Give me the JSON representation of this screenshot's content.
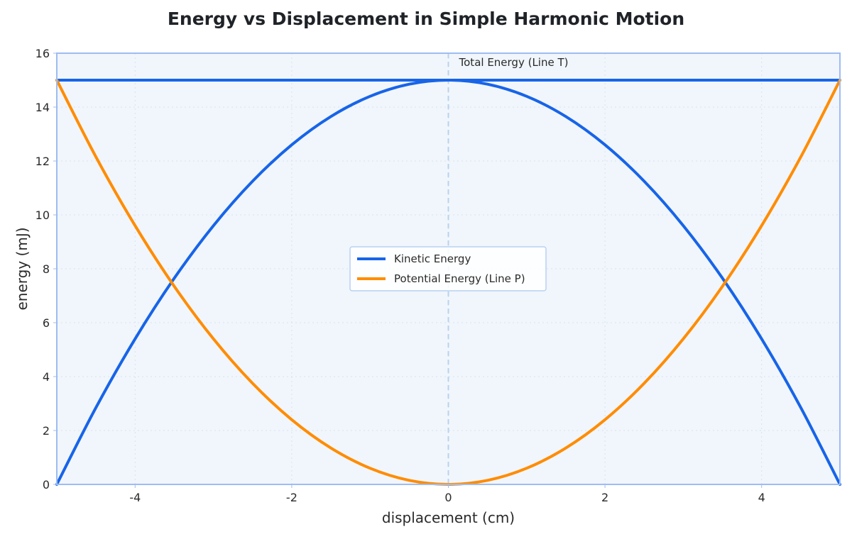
{
  "chart_data": {
    "type": "line",
    "title": "Energy vs Displacement in Simple Harmonic Motion",
    "xlabel": "displacement (cm)",
    "ylabel": "energy (mJ)",
    "xlim": [
      -5,
      5
    ],
    "ylim": [
      0,
      16
    ],
    "x_ticks": [
      -4,
      -2,
      0,
      2,
      4
    ],
    "y_ticks": [
      0,
      2,
      4,
      6,
      8,
      10,
      12,
      14,
      16
    ],
    "grid": true,
    "legend_position": "center",
    "x": [
      -5,
      -4.5,
      -4,
      -3.5,
      -3,
      -2.5,
      -2,
      -1.5,
      -1,
      -0.5,
      0,
      0.5,
      1,
      1.5,
      2,
      2.5,
      3,
      3.5,
      4,
      4.5,
      5
    ],
    "series": [
      {
        "name": "Kinetic Energy",
        "color": "#1764e8",
        "values": [
          0,
          2.85,
          5.4,
          7.65,
          9.6,
          11.25,
          12.6,
          13.65,
          14.4,
          14.85,
          15,
          14.85,
          14.4,
          13.65,
          12.6,
          11.25,
          9.6,
          7.65,
          5.4,
          2.85,
          0
        ]
      },
      {
        "name": "Potential Energy (Line P)",
        "color": "#ff8c00",
        "values": [
          15,
          12.15,
          9.6,
          7.35,
          5.4,
          3.75,
          2.4,
          1.35,
          0.6,
          0.15,
          0,
          0.15,
          0.6,
          1.35,
          2.4,
          3.75,
          5.4,
          7.35,
          9.6,
          12.15,
          15
        ]
      },
      {
        "color": "#1764e8",
        "values": [
          15,
          15,
          15,
          15,
          15,
          15,
          15,
          15,
          15,
          15,
          15,
          15,
          15,
          15,
          15,
          15,
          15,
          15,
          15,
          15,
          15
        ]
      }
    ],
    "annotations": [
      {
        "text": "Total Energy (Line T)",
        "x": 0.1,
        "y": 15.6
      }
    ],
    "reference_line": {
      "x": 0,
      "style": "dashed",
      "color": "#b9d3ec"
    },
    "plot_background": "#f1f6fc",
    "frame_color": "#9dbcf2"
  }
}
